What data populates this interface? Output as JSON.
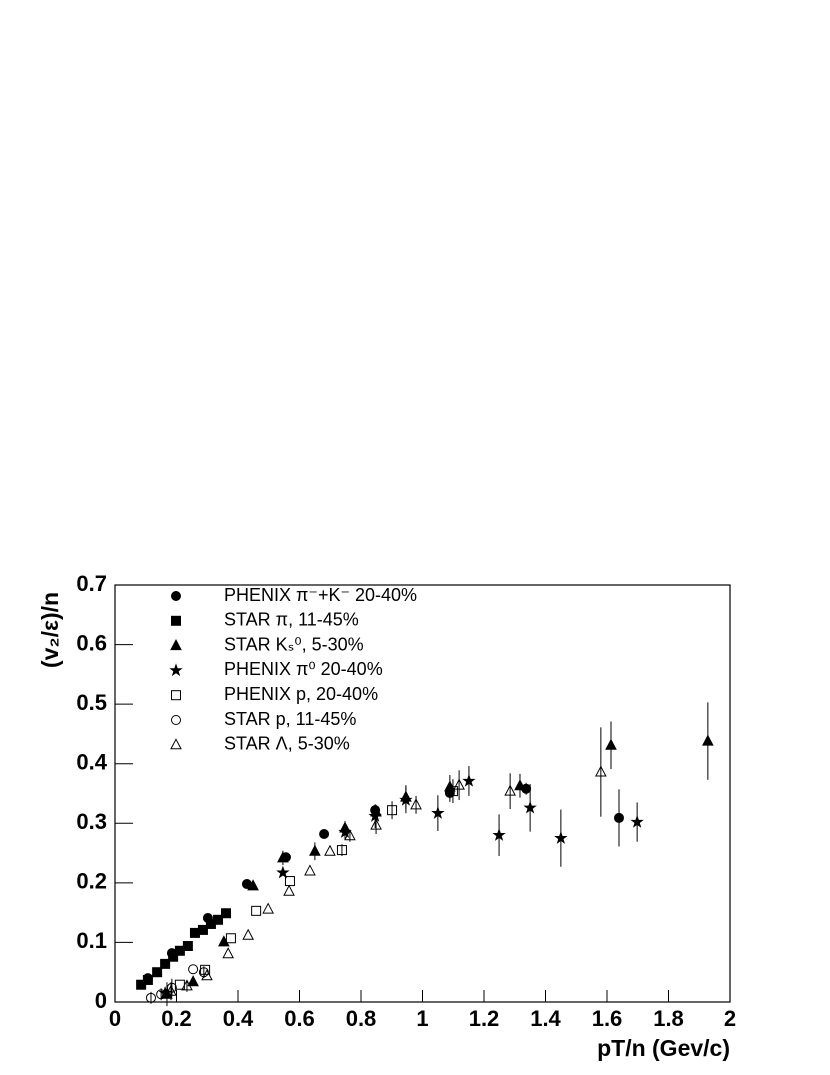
{
  "chart_data": {
    "type": "scatter",
    "x_label": "pT/n (Gev/c)",
    "y_label": "(v₂/ε)/n",
    "xlim": [
      0,
      2
    ],
    "ylim": [
      0,
      0.7
    ],
    "xticks": [
      0,
      0.2,
      0.4,
      0.6,
      0.8,
      1,
      1.2,
      1.4,
      1.6,
      1.8,
      2
    ],
    "yticks": [
      0,
      0.1,
      0.2,
      0.3,
      0.4,
      0.5,
      0.6,
      0.7
    ],
    "series": [
      {
        "name": "PHENIX π⁻+K⁻ 20-40%",
        "marker": "circle",
        "filled": true,
        "color": "#000000",
        "x": [
          0.107,
          0.185,
          0.302,
          0.429,
          0.556,
          0.68,
          0.846,
          1.089,
          1.337,
          1.639
        ],
        "values": [
          0.04,
          0.082,
          0.141,
          0.198,
          0.243,
          0.282,
          0.322,
          0.351,
          0.358,
          0.309
        ],
        "errors": [
          null,
          null,
          null,
          null,
          null,
          null,
          0.008,
          0.015,
          0.01,
          0.048
        ]
      },
      {
        "name": "STAR π, 11-45%",
        "marker": "square",
        "filled": true,
        "color": "#000000",
        "x": [
          0.085,
          0.107,
          0.137,
          0.163,
          0.189,
          0.211,
          0.237,
          0.26,
          0.286,
          0.312,
          0.335,
          0.361
        ],
        "values": [
          0.029,
          0.037,
          0.05,
          0.064,
          0.076,
          0.086,
          0.094,
          0.116,
          0.121,
          0.131,
          0.138,
          0.149
        ],
        "errors": [
          null,
          null,
          null,
          null,
          null,
          null,
          null,
          null,
          null,
          null,
          null,
          null
        ]
      },
      {
        "name": "STAR Kₛ⁰, 5-30%",
        "marker": "triangle",
        "filled": true,
        "color": "#000000",
        "x": [
          0.169,
          0.254,
          0.354,
          0.449,
          0.546,
          0.65,
          0.748,
          0.849,
          0.946,
          1.089,
          1.317,
          1.613,
          1.928
        ],
        "values": [
          0.013,
          0.034,
          0.101,
          0.195,
          0.242,
          0.253,
          0.292,
          0.319,
          0.344,
          0.361,
          0.363,
          0.431,
          0.438
        ],
        "errors": [
          0.02,
          null,
          null,
          null,
          0.012,
          0.015,
          0.012,
          0.012,
          0.02,
          0.02,
          0.02,
          0.04,
          0.065
        ]
      },
      {
        "name": "PHENIX π⁰ 20-40%",
        "marker": "star",
        "filled": true,
        "color": "#000000",
        "x": [
          0.163,
          0.546,
          0.748,
          0.846,
          0.946,
          1.05,
          1.151,
          1.249,
          1.35,
          1.45,
          1.698
        ],
        "values": [
          0.015,
          0.217,
          0.285,
          0.312,
          0.339,
          0.317,
          0.371,
          0.28,
          0.326,
          0.275,
          0.302
        ],
        "errors": [
          null,
          null,
          0.012,
          0.02,
          0.022,
          0.03,
          0.025,
          0.035,
          0.04,
          0.048,
          0.033
        ]
      },
      {
        "name": "PHENIX p, 20-40%",
        "marker": "square",
        "filled": false,
        "color": "#000000",
        "x": [
          0.211,
          0.293,
          0.377,
          0.459,
          0.569,
          0.738,
          0.901,
          1.099
        ],
        "values": [
          0.029,
          0.054,
          0.107,
          0.153,
          0.203,
          0.255,
          0.322,
          0.354
        ],
        "errors": [
          null,
          null,
          null,
          null,
          null,
          0.01,
          0.015,
          0.02
        ]
      },
      {
        "name": "STAR p, 11-45%",
        "marker": "circle",
        "filled": false,
        "color": "#000000",
        "x": [
          0.117,
          0.15,
          0.185,
          0.254,
          0.289
        ],
        "values": [
          0.007,
          0.013,
          0.024,
          0.055,
          0.05
        ],
        "errors": [
          0.01,
          0.01,
          0.015,
          null,
          0.01
        ]
      },
      {
        "name": "STAR Λ, 5-30%",
        "marker": "triangle",
        "filled": false,
        "color": "#000000",
        "x": [
          0.182,
          0.234,
          0.299,
          0.368,
          0.433,
          0.498,
          0.566,
          0.634,
          0.699,
          0.764,
          0.849,
          0.979,
          1.119,
          1.285,
          1.58
        ],
        "values": [
          0.018,
          0.027,
          0.044,
          0.081,
          0.112,
          0.156,
          0.186,
          0.22,
          0.253,
          0.279,
          0.297,
          0.331,
          0.364,
          0.354,
          0.386
        ],
        "errors": [
          0.015,
          0.01,
          null,
          null,
          null,
          null,
          null,
          null,
          null,
          0.01,
          0.015,
          0.015,
          0.025,
          0.03,
          0.075
        ]
      }
    ]
  }
}
